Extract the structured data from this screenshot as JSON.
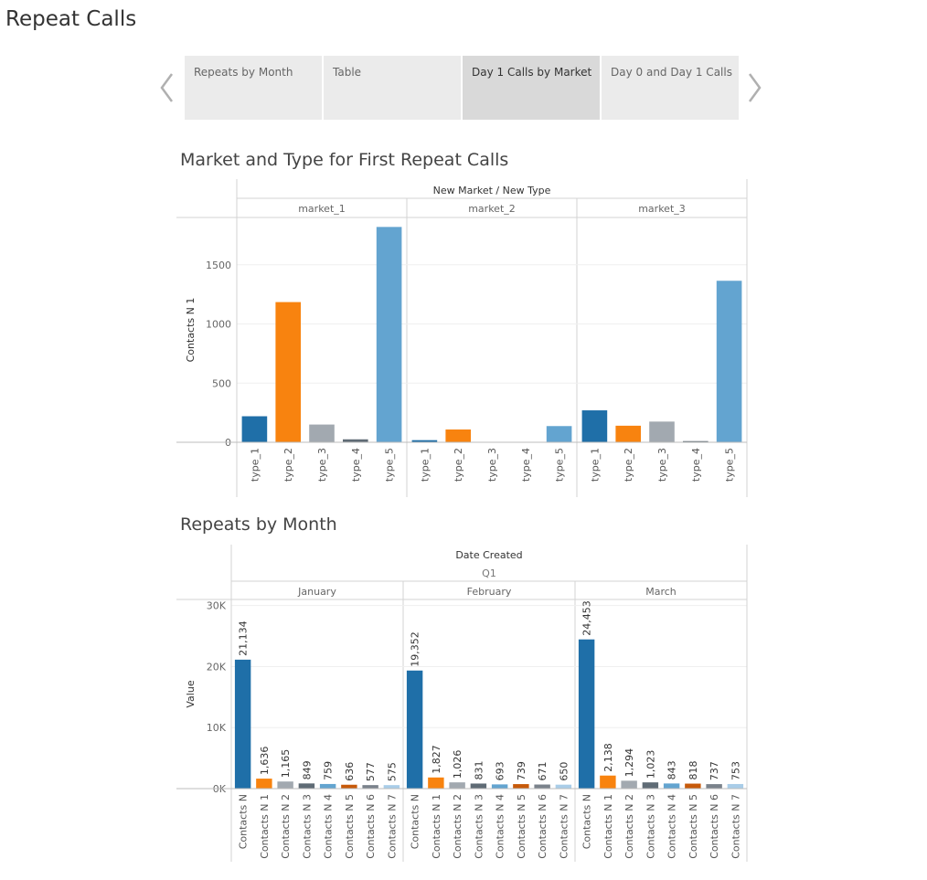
{
  "page": {
    "title": "Repeat Calls"
  },
  "nav": {
    "tabs": [
      {
        "label": "Repeats by Month",
        "active": false
      },
      {
        "label": "Table",
        "active": false
      },
      {
        "label": "Day 1 Calls by Market",
        "active": true
      },
      {
        "label": "Day 0 and Day 1 Calls",
        "active": false
      }
    ]
  },
  "colors": {
    "series": [
      "#1f6fa8",
      "#f8830f",
      "#a2a9b0",
      "#5f6b75",
      "#63a4d0",
      "#c75a0a",
      "#7a828b",
      "#a9cde8"
    ]
  },
  "chart_data": [
    {
      "type": "bar",
      "title": "Market and Type for First Repeat Calls",
      "header": "New Market / New Type",
      "ylabel": "Contacts N 1",
      "ylim": [
        0,
        1900
      ],
      "yticks": [
        0,
        500,
        1000,
        1500
      ],
      "ytick_labels": [
        "0",
        "500",
        "1000",
        "1500"
      ],
      "groups": [
        "market_1",
        "market_2",
        "market_3"
      ],
      "categories": [
        "type_1",
        "type_2",
        "type_3",
        "type_4",
        "type_5"
      ],
      "values": [
        [
          220,
          1185,
          150,
          25,
          1820
        ],
        [
          18,
          108,
          0,
          0,
          137
        ],
        [
          270,
          140,
          175,
          10,
          1365
        ]
      ],
      "grid": true
    },
    {
      "type": "bar",
      "title": "Repeats by Month",
      "header": "Date Created",
      "subheader": "Q1",
      "ylabel": "Value",
      "ylim": [
        0,
        31000
      ],
      "yticks": [
        0,
        10000,
        20000,
        30000
      ],
      "ytick_labels": [
        "0K",
        "10K",
        "20K",
        "30K"
      ],
      "groups": [
        "January",
        "February",
        "March"
      ],
      "categories": [
        "Contacts N",
        "Contacts N 1",
        "Contacts N 2",
        "Contacts N 3",
        "Contacts N 4",
        "Contacts N 5",
        "Contacts N 6",
        "Contacts N 7"
      ],
      "values": [
        [
          21134,
          1636,
          1165,
          849,
          759,
          636,
          577,
          575
        ],
        [
          19352,
          1827,
          1026,
          831,
          693,
          739,
          671,
          650
        ],
        [
          24453,
          2138,
          1294,
          1023,
          843,
          818,
          737,
          753
        ]
      ],
      "value_labels": [
        [
          "21,134",
          "1,636",
          "1,165",
          "849",
          "759",
          "636",
          "577",
          "575"
        ],
        [
          "19,352",
          "1,827",
          "1,026",
          "831",
          "693",
          "739",
          "671",
          "650"
        ],
        [
          "24,453",
          "2,138",
          "1,294",
          "1,023",
          "843",
          "818",
          "737",
          "753"
        ]
      ],
      "grid": true
    }
  ]
}
